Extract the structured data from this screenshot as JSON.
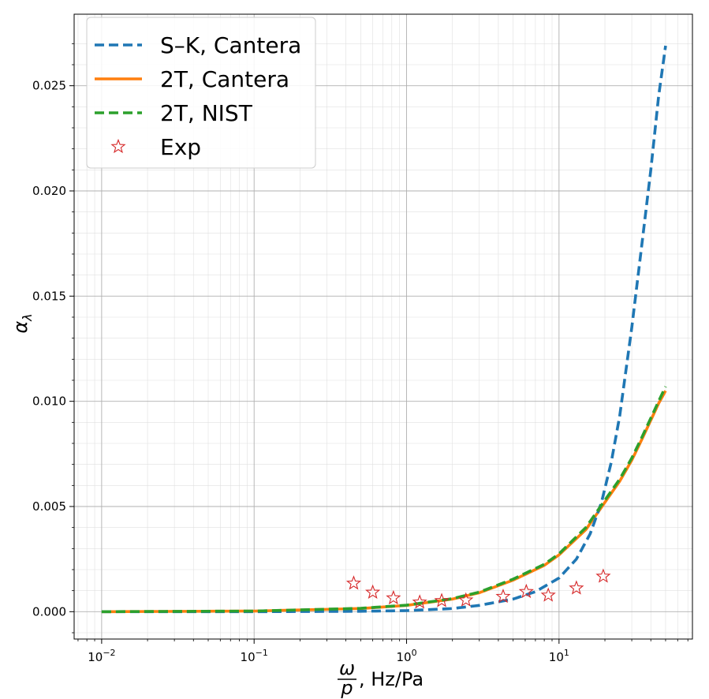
{
  "chart_data": {
    "type": "line",
    "title": "",
    "xlabel": {
      "numerator": "ω",
      "denominator": "p",
      "suffix": ", Hz/Pa"
    },
    "ylabel": "α_λ",
    "xscale": "log",
    "xlim": [
      0.0066,
      75
    ],
    "ylim": [
      -0.0013,
      0.0284
    ],
    "x_ticks": [
      {
        "value": 0.01,
        "base": "10",
        "exp": "−2"
      },
      {
        "value": 0.1,
        "base": "10",
        "exp": "−1"
      },
      {
        "value": 1,
        "base": "10",
        "exp": "0"
      },
      {
        "value": 10,
        "base": "10",
        "exp": "1"
      }
    ],
    "y_ticks": [
      {
        "value": 0.0,
        "label": "0.000"
      },
      {
        "value": 0.005,
        "label": "0.005"
      },
      {
        "value": 0.01,
        "label": "0.010"
      },
      {
        "value": 0.015,
        "label": "0.015"
      },
      {
        "value": 0.02,
        "label": "0.020"
      },
      {
        "value": 0.025,
        "label": "0.025"
      }
    ],
    "grid": true,
    "minor_grid": true,
    "legend_position": "top-left",
    "series": [
      {
        "name": "S–K, Cantera",
        "style": "dashed",
        "color": "#1f77b4",
        "points": [
          [
            0.01,
            0.0
          ],
          [
            0.1,
            0.0
          ],
          [
            0.5,
            2e-05
          ],
          [
            1.0,
            5e-05
          ],
          [
            2.0,
            0.00015
          ],
          [
            3.0,
            0.0003
          ],
          [
            5.0,
            0.0006
          ],
          [
            7.0,
            0.00095
          ],
          [
            10.0,
            0.0016
          ],
          [
            13.0,
            0.0025
          ],
          [
            16.0,
            0.0037
          ],
          [
            19.0,
            0.0052
          ],
          [
            22.0,
            0.0071
          ],
          [
            25.0,
            0.0093
          ],
          [
            30.0,
            0.0135
          ],
          [
            35.0,
            0.0175
          ],
          [
            40.0,
            0.021
          ],
          [
            45.0,
            0.0245
          ],
          [
            50.0,
            0.0269
          ]
        ]
      },
      {
        "name": "2T, Cantera",
        "style": "solid",
        "color": "#ff7f0e",
        "points": [
          [
            0.01,
            0.0
          ],
          [
            0.1,
            3e-05
          ],
          [
            0.5,
            0.00015
          ],
          [
            1.0,
            0.0003
          ],
          [
            2.0,
            0.0006
          ],
          [
            3.0,
            0.0009
          ],
          [
            5.0,
            0.0015
          ],
          [
            8.0,
            0.0022
          ],
          [
            10.0,
            0.0027
          ],
          [
            15.0,
            0.0039
          ],
          [
            20.0,
            0.0052
          ],
          [
            25.0,
            0.0062
          ],
          [
            30.0,
            0.0072
          ],
          [
            35.0,
            0.0082
          ],
          [
            40.0,
            0.0091
          ],
          [
            45.0,
            0.0099
          ],
          [
            50.0,
            0.0105
          ]
        ]
      },
      {
        "name": "2T, NIST",
        "style": "dashed",
        "color": "#2ca02c",
        "points": [
          [
            0.01,
            0.0
          ],
          [
            0.1,
            3e-05
          ],
          [
            0.5,
            0.00016
          ],
          [
            1.0,
            0.00031
          ],
          [
            2.0,
            0.00062
          ],
          [
            3.0,
            0.00093
          ],
          [
            5.0,
            0.00155
          ],
          [
            8.0,
            0.00225
          ],
          [
            10.0,
            0.00275
          ],
          [
            15.0,
            0.004
          ],
          [
            20.0,
            0.0053
          ],
          [
            25.0,
            0.0063
          ],
          [
            30.0,
            0.0073
          ],
          [
            35.0,
            0.0083
          ],
          [
            40.0,
            0.0092
          ],
          [
            45.0,
            0.01
          ],
          [
            50.0,
            0.0107
          ]
        ]
      }
    ],
    "scatter": {
      "name": "Exp",
      "marker": "star",
      "color": "#d62728",
      "points": [
        [
          0.45,
          0.00135
        ],
        [
          0.6,
          0.00092
        ],
        [
          0.82,
          0.00065
        ],
        [
          1.22,
          0.00045
        ],
        [
          1.7,
          0.00052
        ],
        [
          2.45,
          0.00055
        ],
        [
          4.3,
          0.00072
        ],
        [
          6.1,
          0.00095
        ],
        [
          8.5,
          0.00078
        ],
        [
          13.0,
          0.00112
        ],
        [
          19.5,
          0.00168
        ]
      ]
    }
  }
}
